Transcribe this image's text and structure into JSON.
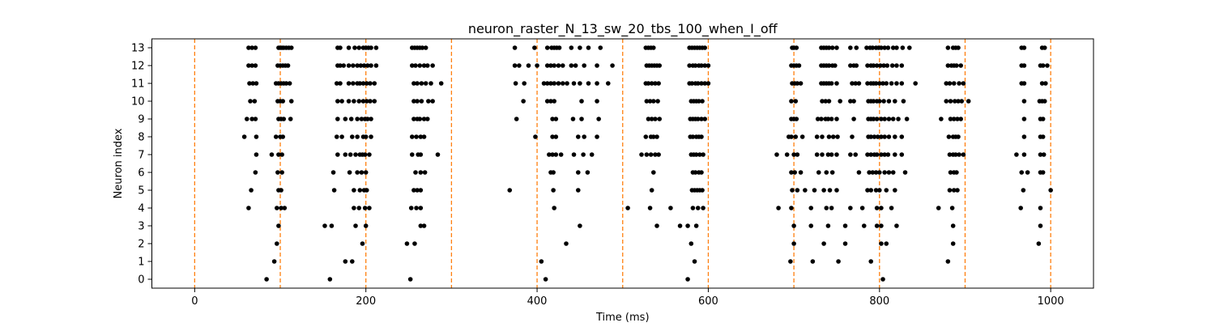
{
  "chart_data": {
    "type": "scatter",
    "title": "neuron_raster_N_13_sw_20_tbs_100_when_I_off",
    "xlabel": "Time (ms)",
    "ylabel": "Neuron index",
    "xlim": [
      -50,
      1050
    ],
    "ylim": [
      -0.5,
      13.5
    ],
    "x_ticks": [
      0,
      200,
      400,
      600,
      800,
      1000
    ],
    "y_ticks": [
      0,
      1,
      2,
      3,
      4,
      5,
      6,
      7,
      8,
      9,
      10,
      11,
      12,
      13
    ],
    "grid": false,
    "legend": "none",
    "point_color": "#000000",
    "vline_color": "#ff7f0e",
    "vlines": [
      0,
      100,
      200,
      300,
      400,
      500,
      600,
      700,
      800,
      900,
      1000
    ],
    "spikes": [
      {
        "neuron": 13,
        "times": [
          63,
          67,
          71,
          98,
          100,
          102,
          104,
          107,
          110,
          113,
          167,
          170,
          180,
          187,
          192,
          197,
          200,
          203,
          206,
          212,
          254,
          257,
          260,
          263,
          266,
          270,
          374,
          397,
          412,
          417,
          420,
          423,
          426,
          440,
          450,
          460,
          474,
          527,
          530,
          533,
          536,
          578,
          581,
          584,
          587,
          590,
          593,
          596,
          698,
          700,
          703,
          732,
          735,
          738,
          741,
          745,
          750,
          766,
          773,
          785,
          789,
          792,
          796,
          799,
          802,
          806,
          810,
          816,
          820,
          827,
          835,
          880,
          886,
          889,
          892,
          966,
          969,
          990,
          993
        ]
      },
      {
        "neuron": 12,
        "times": [
          63,
          67,
          71,
          97,
          100,
          103,
          106,
          109,
          167,
          170,
          174,
          180,
          185,
          190,
          194,
          198,
          202,
          206,
          212,
          254,
          258,
          263,
          268,
          272,
          278,
          374,
          379,
          390,
          400,
          412,
          416,
          420,
          425,
          430,
          440,
          445,
          455,
          470,
          488,
          528,
          531,
          534,
          537,
          540,
          543,
          578,
          582,
          585,
          589,
          592,
          596,
          600,
          697,
          700,
          703,
          706,
          732,
          735,
          738,
          741,
          745,
          748,
          766,
          770,
          773,
          786,
          790,
          793,
          797,
          801,
          805,
          809,
          815,
          820,
          826,
          880,
          884,
          887,
          890,
          895,
          966,
          969,
          988,
          991,
          996
        ]
      },
      {
        "neuron": 11,
        "times": [
          64,
          68,
          72,
          95,
          98,
          101,
          104,
          107,
          111,
          166,
          170,
          180,
          185,
          190,
          193,
          197,
          201,
          205,
          210,
          256,
          260,
          265,
          270,
          276,
          288,
          375,
          385,
          408,
          412,
          416,
          420,
          425,
          430,
          435,
          443,
          450,
          460,
          470,
          483,
          527,
          530,
          534,
          538,
          542,
          578,
          581,
          585,
          588,
          592,
          596,
          600,
          698,
          701,
          704,
          708,
          732,
          735,
          738,
          741,
          744,
          750,
          768,
          772,
          776,
          786,
          790,
          793,
          796,
          800,
          804,
          808,
          814,
          820,
          826,
          842,
          878,
          882,
          887,
          893,
          898,
          966,
          969,
          990,
          994
        ]
      },
      {
        "neuron": 10,
        "times": [
          65,
          70,
          97,
          100,
          103,
          113,
          167,
          172,
          180,
          186,
          192,
          197,
          201,
          205,
          210,
          256,
          260,
          265,
          273,
          278,
          384,
          412,
          416,
          420,
          452,
          470,
          528,
          532,
          536,
          541,
          580,
          583,
          586,
          589,
          593,
          697,
          702,
          733,
          737,
          741,
          754,
          766,
          770,
          787,
          790,
          793,
          797,
          800,
          805,
          811,
          818,
          828,
          878,
          883,
          888,
          892,
          896,
          904,
          969,
          987,
          990,
          993
        ]
      },
      {
        "neuron": 9,
        "times": [
          61,
          67,
          71,
          98,
          101,
          104,
          112,
          167,
          176,
          183,
          190,
          195,
          199,
          202,
          206,
          256,
          260,
          263,
          268,
          272,
          376,
          418,
          422,
          442,
          452,
          472,
          530,
          534,
          538,
          543,
          579,
          582,
          585,
          588,
          592,
          596,
          697,
          700,
          703,
          728,
          732,
          737,
          740,
          744,
          750,
          770,
          787,
          790,
          793,
          797,
          802,
          806,
          811,
          816,
          822,
          832,
          872,
          883,
          887,
          891,
          895,
          969,
          988,
          991
        ]
      },
      {
        "neuron": 8,
        "times": [
          58,
          72,
          95,
          100,
          103,
          166,
          172,
          184,
          190,
          197,
          200,
          206,
          254,
          259,
          264,
          268,
          398,
          418,
          422,
          448,
          455,
          470,
          527,
          533,
          536,
          540,
          579,
          582,
          586,
          589,
          592,
          694,
          697,
          702,
          710,
          727,
          733,
          741,
          746,
          751,
          768,
          787,
          790,
          794,
          798,
          802,
          806,
          811,
          818,
          826,
          881,
          886,
          889,
          892,
          969,
          988,
          991
        ]
      },
      {
        "neuron": 7,
        "times": [
          72,
          90,
          98,
          102,
          167,
          176,
          182,
          188,
          193,
          196,
          199,
          204,
          254,
          261,
          264,
          284,
          414,
          418,
          422,
          428,
          443,
          454,
          464,
          522,
          528,
          533,
          538,
          542,
          580,
          583,
          586,
          590,
          594,
          680,
          692,
          700,
          704,
          727,
          733,
          740,
          744,
          750,
          766,
          772,
          786,
          790,
          794,
          797,
          802,
          806,
          810,
          818,
          826,
          882,
          886,
          889,
          893,
          898,
          960,
          969,
          988,
          992
        ]
      },
      {
        "neuron": 6,
        "times": [
          71,
          97,
          102,
          162,
          181,
          190,
          195,
          200,
          258,
          264,
          269,
          416,
          419,
          448,
          459,
          536,
          582,
          585,
          589,
          592,
          697,
          701,
          708,
          729,
          738,
          745,
          776,
          788,
          792,
          796,
          800,
          806,
          811,
          816,
          830,
          883,
          887,
          890,
          966,
          973,
          988,
          991
        ]
      },
      {
        "neuron": 5,
        "times": [
          66,
          98,
          101,
          163,
          186,
          193,
          198,
          201,
          256,
          260,
          264,
          368,
          419,
          448,
          534,
          581,
          584,
          587,
          590,
          593,
          698,
          704,
          713,
          724,
          735,
          742,
          750,
          786,
          790,
          796,
          800,
          808,
          818,
          882,
          887,
          891,
          968,
          1000
        ]
      },
      {
        "neuron": 4,
        "times": [
          63,
          96,
          101,
          105,
          186,
          192,
          199,
          204,
          253,
          259,
          264,
          420,
          506,
          532,
          556,
          582,
          588,
          594,
          682,
          697,
          720,
          738,
          744,
          766,
          780,
          797,
          802,
          814,
          869,
          885,
          965,
          988
        ]
      },
      {
        "neuron": 3,
        "times": [
          98,
          152,
          160,
          188,
          200,
          264,
          268,
          450,
          540,
          567,
          576,
          586,
          700,
          720,
          740,
          760,
          782,
          797,
          802,
          820,
          886,
          988
        ]
      },
      {
        "neuron": 2,
        "times": [
          96,
          196,
          248,
          257,
          434,
          580,
          700,
          735,
          760,
          802,
          808,
          886,
          986
        ]
      },
      {
        "neuron": 1,
        "times": [
          93,
          176,
          184,
          405,
          584,
          696,
          722,
          752,
          790,
          880
        ]
      },
      {
        "neuron": 0,
        "times": [
          84,
          158,
          252,
          410,
          576,
          804
        ]
      }
    ]
  }
}
